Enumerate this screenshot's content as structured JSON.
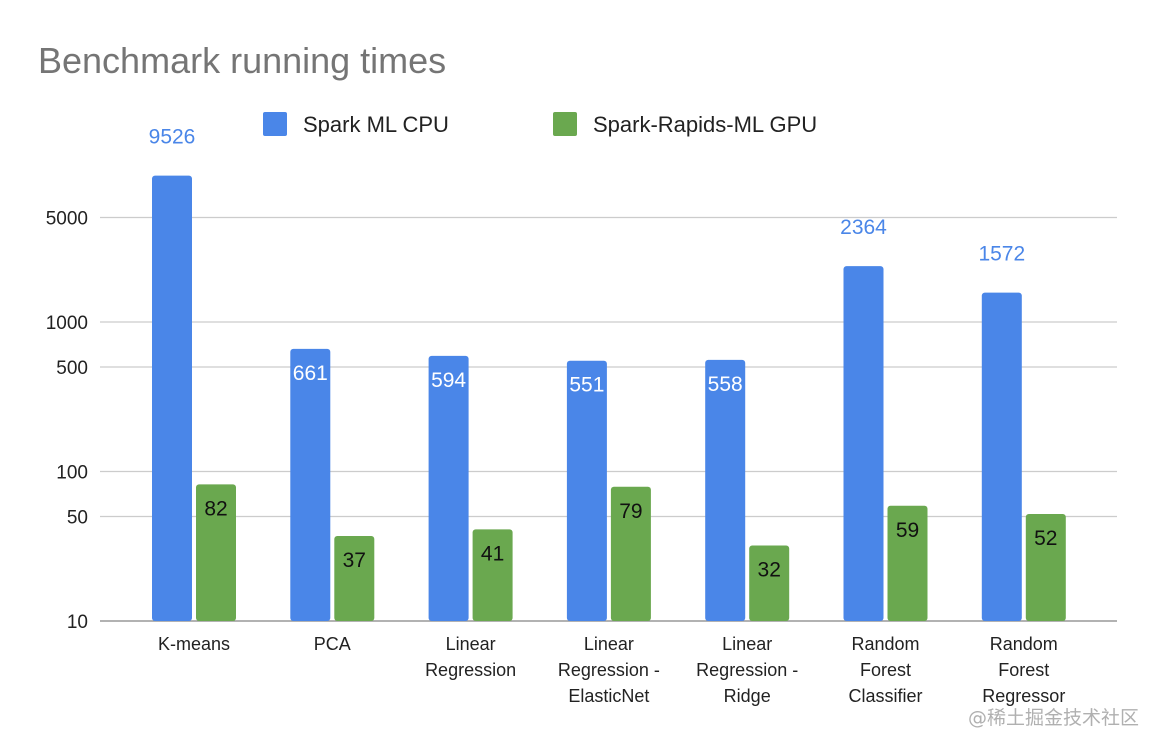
{
  "chart_data": {
    "type": "bar",
    "title": "Benchmark running times",
    "xlabel": "",
    "ylabel": "",
    "yscale": "log",
    "ylim": [
      10,
      10000
    ],
    "yticks": [
      10,
      50,
      100,
      500,
      1000,
      5000
    ],
    "grid": true,
    "legend_position": "top",
    "categories": [
      [
        "K-means"
      ],
      [
        "PCA"
      ],
      [
        "Linear",
        "Regression"
      ],
      [
        "Linear",
        "Regression -",
        "ElasticNet"
      ],
      [
        "Linear",
        "Regression -",
        "Ridge"
      ],
      [
        "Random",
        "Forest",
        "Classifier"
      ],
      [
        "Random",
        "Forest",
        "Regressor"
      ]
    ],
    "series": [
      {
        "name": "Spark ML CPU",
        "color": "#4a86e8",
        "values": [
          9526,
          661,
          594,
          551,
          558,
          2364,
          1572
        ]
      },
      {
        "name": "Spark-Rapids-ML GPU",
        "color": "#6aa84f",
        "values": [
          82,
          37,
          41,
          79,
          32,
          59,
          52
        ]
      }
    ]
  },
  "watermark": "@稀土掘金技术社区"
}
